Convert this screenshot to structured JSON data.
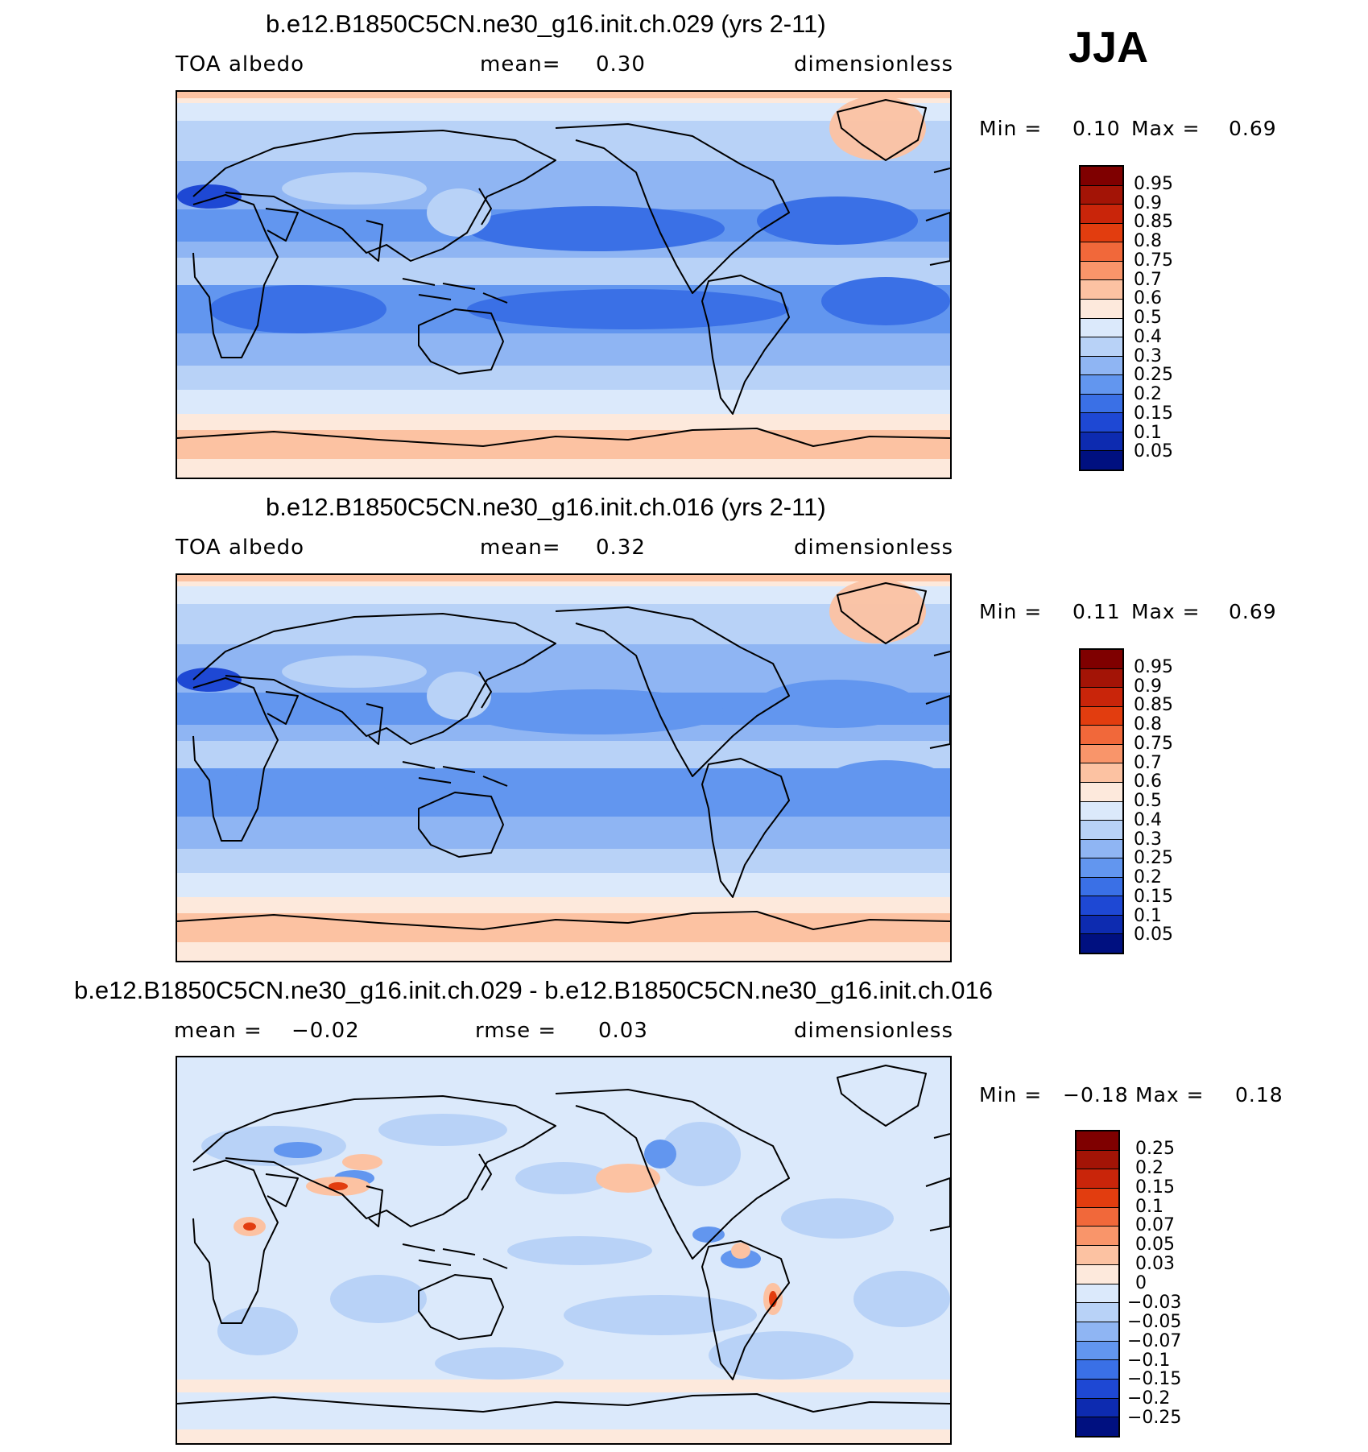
{
  "season": "JJA",
  "panels": [
    {
      "title": "b.e12.B1850C5CN.ne30_g16.init.ch.029 (yrs 2-11)",
      "left_label": "TOA albedo",
      "center_label": "mean=",
      "center_value": "0.30",
      "right_label": "dimensionless",
      "min_label": "Min =",
      "min_value": "0.10",
      "max_label": "Max =",
      "max_value": "0.69",
      "map_variant": "abs1"
    },
    {
      "title": "b.e12.B1850C5CN.ne30_g16.init.ch.016 (yrs 2-11)",
      "left_label": "TOA albedo",
      "center_label": "mean=",
      "center_value": "0.32",
      "right_label": "dimensionless",
      "min_label": "Min =",
      "min_value": "0.11",
      "max_label": "Max =",
      "max_value": "0.69",
      "map_variant": "abs2"
    },
    {
      "title": "b.e12.B1850C5CN.ne30_g16.init.ch.029 - b.e12.B1850C5CN.ne30_g16.init.ch.016",
      "left_label": "mean =",
      "left_value": "−0.02",
      "center_label": "rmse =",
      "center_value": "0.03",
      "right_label": "dimensionless",
      "min_label": "Min =",
      "min_value": "−0.18",
      "max_label": "Max =",
      "max_value": "0.18",
      "map_variant": "diff"
    }
  ],
  "colorbars": {
    "abs": {
      "labels": [
        "0.95",
        "0.9",
        "0.85",
        "0.8",
        "0.75",
        "0.7",
        "0.6",
        "0.5",
        "0.4",
        "0.3",
        "0.25",
        "0.2",
        "0.15",
        "0.1",
        "0.05"
      ],
      "colors": [
        "#7f0000",
        "#a31406",
        "#c9250a",
        "#e23d0f",
        "#f1683a",
        "#f9956a",
        "#fcc2a2",
        "#fde9dc",
        "#dbe9fb",
        "#b8d2f7",
        "#8fb5f3",
        "#6296ef",
        "#3a70e6",
        "#1e48d4",
        "#0d2bb0",
        "#001080"
      ]
    },
    "diff": {
      "labels": [
        "0.25",
        "0.2",
        "0.15",
        "0.1",
        "0.07",
        "0.05",
        "0.03",
        "0",
        "−0.03",
        "−0.05",
        "−0.07",
        "−0.1",
        "−0.15",
        "−0.2",
        "−0.25"
      ],
      "colors": [
        "#7f0000",
        "#a31406",
        "#c9250a",
        "#e23d0f",
        "#f1683a",
        "#f9956a",
        "#fcc2a2",
        "#fde9dc",
        "#dbe9fb",
        "#b8d2f7",
        "#8fb5f3",
        "#6296ef",
        "#3a70e6",
        "#1e48d4",
        "#0d2bb0",
        "#001080"
      ]
    }
  }
}
